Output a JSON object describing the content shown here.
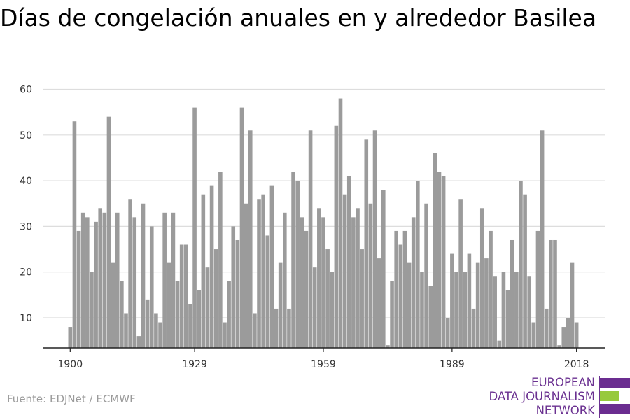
{
  "chart_data": {
    "type": "bar",
    "title": "Días de congelación anuales en y alrededor Basilea",
    "xlabel": "",
    "ylabel": "",
    "x_ticks": [
      "1900",
      "1929",
      "1959",
      "1989",
      "2018"
    ],
    "y_ticks": [
      "10",
      "20",
      "30",
      "40",
      "50",
      "60"
    ],
    "ylim": [
      3,
      60
    ],
    "grid": true,
    "bar_color": "#9b9b9b",
    "start_year": 1900,
    "values": [
      8,
      53,
      29,
      33,
      32,
      20,
      31,
      34,
      33,
      54,
      22,
      33,
      18,
      11,
      36,
      32,
      6,
      35,
      14,
      30,
      11,
      9,
      33,
      22,
      33,
      18,
      26,
      26,
      13,
      56,
      16,
      37,
      21,
      39,
      25,
      42,
      9,
      18,
      30,
      27,
      56,
      35,
      51,
      11,
      36,
      37,
      28,
      39,
      12,
      22,
      33,
      12,
      42,
      40,
      32,
      29,
      51,
      21,
      34,
      32,
      25,
      20,
      52,
      58,
      37,
      41,
      32,
      34,
      25,
      49,
      35,
      51,
      23,
      38,
      4,
      18,
      29,
      26,
      29,
      22,
      32,
      40,
      20,
      35,
      17,
      46,
      42,
      41,
      10,
      24,
      20,
      36,
      20,
      24,
      12,
      22,
      34,
      23,
      29,
      19,
      5,
      20,
      16,
      27,
      20,
      40,
      37,
      19,
      9,
      29,
      51,
      12,
      27,
      27,
      4,
      8,
      10,
      22,
      9
    ]
  },
  "source": "Fuente: EDJNet / ECMWF",
  "logo": {
    "lines": [
      "EUROPEAN",
      "DATA JOURNALISM",
      "NETWORK"
    ],
    "colors": [
      "#6b2d90",
      "#97c93d",
      "#6b2d90"
    ]
  }
}
